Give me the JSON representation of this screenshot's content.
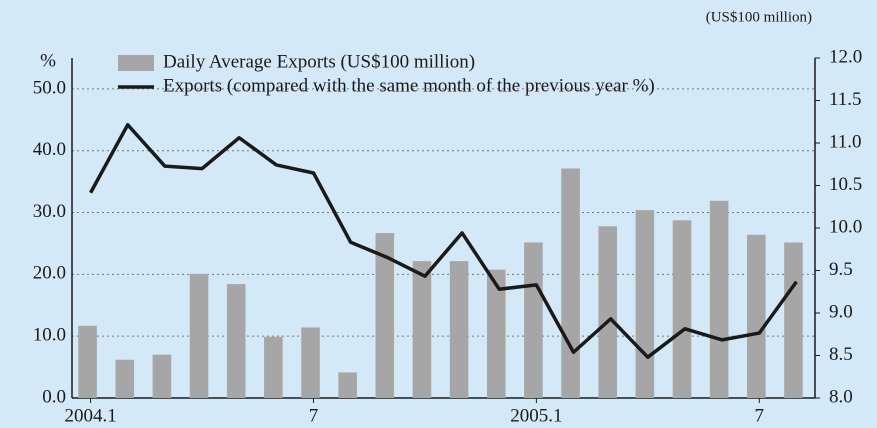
{
  "chart_data": {
    "type": "combo",
    "y_label": "%",
    "y2_label": "(US$100 million)",
    "categories": [
      "2004.1",
      null,
      null,
      null,
      null,
      null,
      "7",
      null,
      null,
      null,
      null,
      null,
      "2005.1",
      null,
      null,
      null,
      null,
      null,
      "7",
      null
    ],
    "series": [
      {
        "name": "Daily Average Exports (US$100 million)",
        "type": "bar",
        "axis": "y2",
        "color": "#a6a6a6",
        "values": [
          8.85,
          8.45,
          8.51,
          9.46,
          9.34,
          8.72,
          8.83,
          8.3,
          9.94,
          9.61,
          9.61,
          9.51,
          9.83,
          10.7,
          10.02,
          10.21,
          10.09,
          10.32,
          9.92,
          9.83
        ]
      },
      {
        "name": "Exports (compared with the same month of the previous year %)",
        "type": "line",
        "color": "#1a1a1a",
        "values": [
          33.2,
          44.2,
          37.5,
          37.1,
          42.1,
          37.7,
          36.4,
          25.2,
          22.7,
          19.7,
          26.7,
          17.6,
          18.3,
          7.4,
          12.8,
          6.6,
          11.2,
          9.4,
          10.5,
          18.8
        ]
      }
    ],
    "ylim": [
      0,
      55
    ],
    "yticks": [
      {
        "value": 0,
        "label": "0.0"
      },
      {
        "value": 10,
        "label": "10.0"
      },
      {
        "value": 20,
        "label": "20.0"
      },
      {
        "value": 30,
        "label": "30.0"
      },
      {
        "value": 40,
        "label": "40.0"
      },
      {
        "value": 50,
        "label": "50.0"
      }
    ],
    "y2lim": [
      8,
      12
    ],
    "y2ticks": [
      {
        "value": 8,
        "label": "8.0"
      },
      {
        "value": 8.5,
        "label": "8.5"
      },
      {
        "value": 9,
        "label": "9.0"
      },
      {
        "value": 9.5,
        "label": "9.5"
      },
      {
        "value": 10,
        "label": "10.0"
      },
      {
        "value": 10.5,
        "label": "10.5"
      },
      {
        "value": 11,
        "label": "11.0"
      },
      {
        "value": 11.5,
        "label": "11.5"
      },
      {
        "value": 12,
        "label": "12.0"
      }
    ],
    "grid": true,
    "legend": "upper left"
  }
}
